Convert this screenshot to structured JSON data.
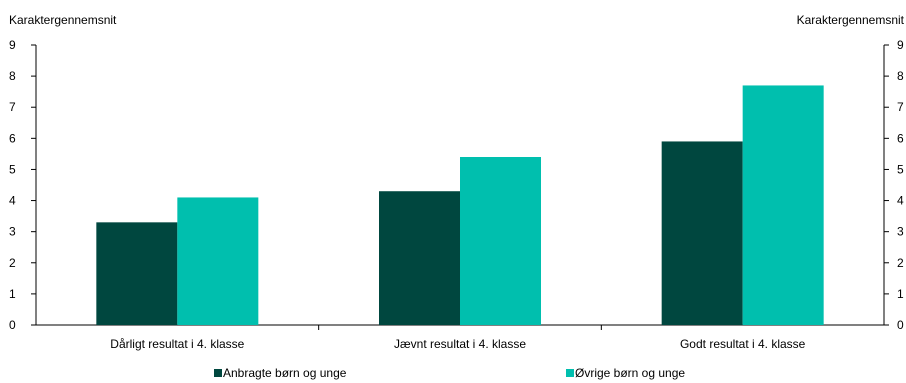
{
  "chart_data": {
    "type": "bar",
    "ylabel_left": "Karaktergennemsnit",
    "ylabel_right": "Karaktergennemsnit",
    "ylim": [
      0,
      9
    ],
    "yticks": [
      "0",
      "1",
      "2",
      "3",
      "4",
      "5",
      "6",
      "7",
      "8",
      "9"
    ],
    "categories": [
      "Dårligt resultat i 4. klasse",
      "Jævnt resultat i 4. klasse",
      "Godt resultat i 4. klasse"
    ],
    "series": [
      {
        "name": "Anbragte børn og unge",
        "values": [
          3.3,
          4.3,
          5.9
        ],
        "color": "#00473f"
      },
      {
        "name": "Øvrige børn og unge",
        "values": [
          4.1,
          5.4,
          7.7
        ],
        "color": "#00bfae"
      }
    ],
    "legend_position": "bottom",
    "grid": false
  }
}
